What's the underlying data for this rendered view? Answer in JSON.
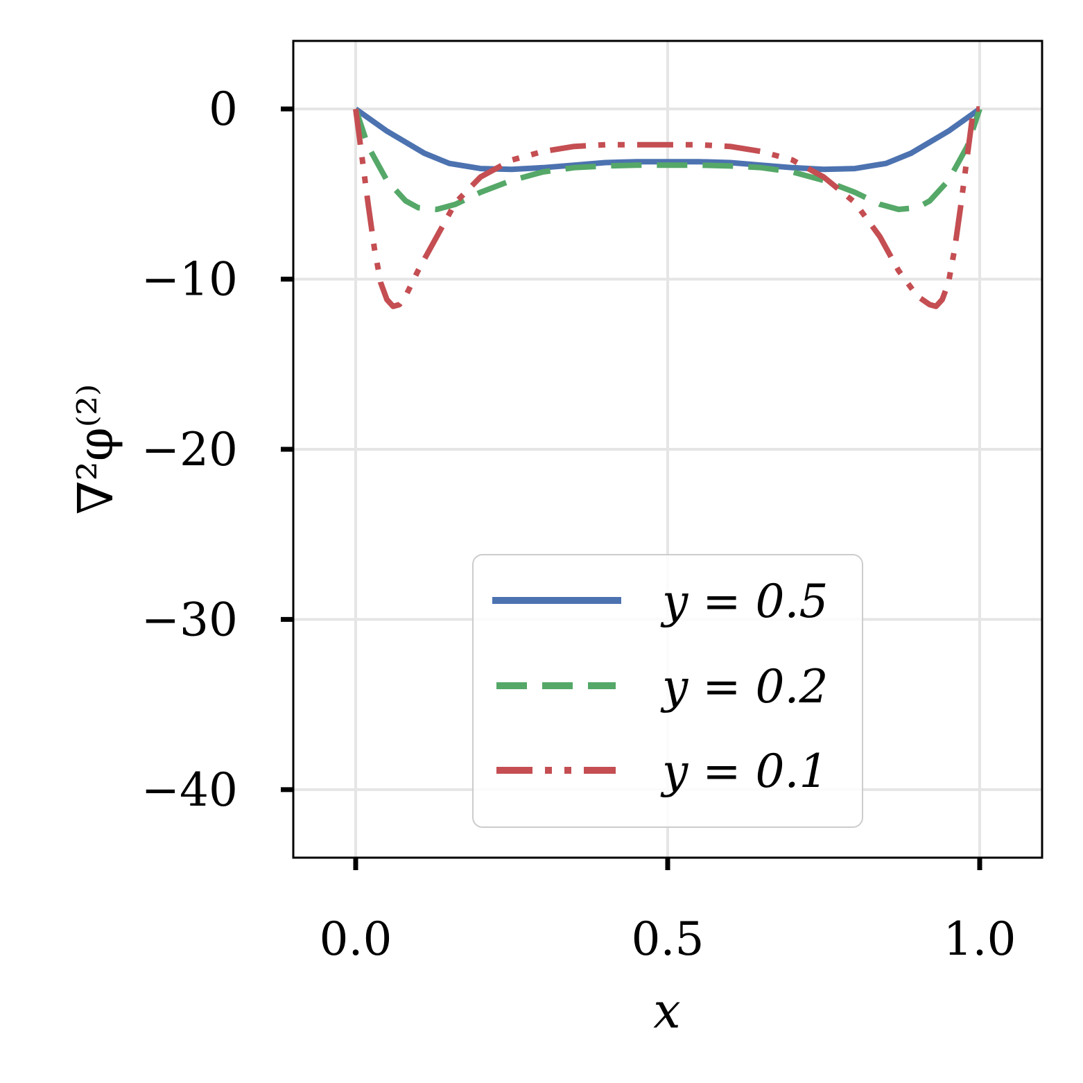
{
  "chart_data": {
    "type": "line",
    "xlabel": "x",
    "ylabel": "∇²φ⁽²⁾",
    "xlim": [
      -0.1,
      1.1
    ],
    "ylim": [
      -44,
      4
    ],
    "xticks": [
      0.0,
      0.5,
      1.0
    ],
    "xtick_labels": [
      "0.0",
      "0.5",
      "1.0"
    ],
    "yticks": [
      0,
      -10,
      -20,
      -30,
      -40
    ],
    "ytick_labels": [
      "0",
      "−10",
      "−20",
      "−30",
      "−40"
    ],
    "grid": true,
    "legend_position": "lower-center",
    "series": [
      {
        "name": "y = 0.5",
        "color": "#4c72b0",
        "style": "solid",
        "x": [
          0.0,
          0.05,
          0.11,
          0.15,
          0.2,
          0.25,
          0.3,
          0.35,
          0.4,
          0.45,
          0.5,
          0.55,
          0.6,
          0.65,
          0.7,
          0.75,
          0.8,
          0.85,
          0.89,
          0.95,
          1.0
        ],
        "y": [
          0.0,
          -1.3,
          -2.6,
          -3.2,
          -3.5,
          -3.55,
          -3.45,
          -3.3,
          -3.15,
          -3.1,
          -3.1,
          -3.1,
          -3.15,
          -3.3,
          -3.45,
          -3.55,
          -3.5,
          -3.2,
          -2.6,
          -1.3,
          0.0
        ]
      },
      {
        "name": "y = 0.2",
        "color": "#55a868",
        "style": "dashed",
        "x": [
          0.0,
          0.02,
          0.05,
          0.08,
          0.1,
          0.13,
          0.16,
          0.2,
          0.25,
          0.3,
          0.35,
          0.4,
          0.45,
          0.5,
          0.55,
          0.6,
          0.65,
          0.7,
          0.75,
          0.8,
          0.84,
          0.87,
          0.9,
          0.92,
          0.95,
          0.98,
          1.0
        ],
        "y": [
          0.0,
          -2.2,
          -4.2,
          -5.4,
          -5.8,
          -5.9,
          -5.6,
          -4.9,
          -4.2,
          -3.7,
          -3.45,
          -3.35,
          -3.3,
          -3.3,
          -3.3,
          -3.35,
          -3.45,
          -3.7,
          -4.2,
          -4.9,
          -5.6,
          -5.9,
          -5.8,
          -5.4,
          -4.2,
          -2.2,
          0.0
        ]
      },
      {
        "name": "y = 0.1",
        "color": "#c44e52",
        "style": "dashdotdot",
        "x": [
          0.0,
          0.01,
          0.02,
          0.03,
          0.04,
          0.05,
          0.06,
          0.07,
          0.08,
          0.1,
          0.13,
          0.16,
          0.2,
          0.25,
          0.3,
          0.35,
          0.4,
          0.45,
          0.5,
          0.55,
          0.6,
          0.65,
          0.7,
          0.75,
          0.8,
          0.84,
          0.87,
          0.9,
          0.92,
          0.93,
          0.94,
          0.95,
          0.96,
          0.97,
          0.98,
          0.99,
          1.0
        ],
        "y": [
          0.0,
          -2.8,
          -5.6,
          -8.2,
          -10.2,
          -11.2,
          -11.6,
          -11.5,
          -11.0,
          -9.5,
          -7.5,
          -5.5,
          -4.0,
          -3.0,
          -2.5,
          -2.2,
          -2.1,
          -2.1,
          -2.1,
          -2.1,
          -2.2,
          -2.5,
          -3.0,
          -4.0,
          -5.5,
          -7.5,
          -9.5,
          -11.0,
          -11.5,
          -11.6,
          -11.2,
          -10.2,
          -8.2,
          -5.6,
          -2.8,
          0.0,
          0.0
        ]
      }
    ]
  }
}
